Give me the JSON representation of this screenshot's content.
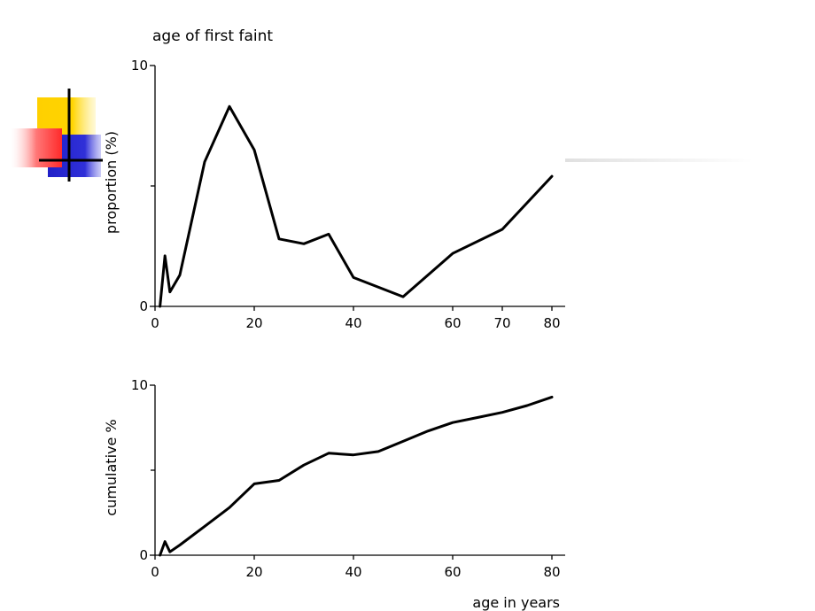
{
  "slide": {
    "accent_colors": {
      "yellow": "#ffd000",
      "red": "#ff3333",
      "blue": "#2222cc",
      "cross": "#000000",
      "rule": "#e4e4e4"
    }
  },
  "chart_data": [
    {
      "type": "line",
      "title": "age of first faint",
      "xlabel": "",
      "ylabel": "proportion (%)",
      "xlim": [
        0,
        82
      ],
      "ylim": [
        0,
        10
      ],
      "x_ticks": [
        0,
        20,
        40,
        60,
        70,
        80
      ],
      "x_tick_labels": [
        "0",
        "20",
        "40",
        "60",
        "70",
        "80"
      ],
      "y_tick_labels": [
        "0",
        "10"
      ],
      "y_minor_ticks": [
        5
      ],
      "grid": false,
      "series": [
        {
          "x": [
            1,
            2,
            3,
            5,
            10,
            15,
            20,
            25,
            30,
            35,
            40,
            50,
            60,
            70,
            80
          ],
          "y": [
            0,
            2.1,
            0.6,
            1.3,
            6.0,
            8.3,
            6.5,
            2.8,
            2.6,
            3.0,
            1.2,
            0.4,
            2.2,
            3.2,
            5.4
          ]
        }
      ]
    },
    {
      "type": "line",
      "title": "",
      "xlabel": "age in years",
      "ylabel": "cumulative %",
      "xlim": [
        0,
        82
      ],
      "ylim": [
        0,
        10
      ],
      "x_ticks": [
        0,
        20,
        40,
        60,
        80
      ],
      "x_tick_labels": [
        "0",
        "20",
        "40",
        "60",
        "80"
      ],
      "y_tick_labels": [
        "0",
        "10"
      ],
      "y_minor_ticks": [
        5
      ],
      "grid": false,
      "series": [
        {
          "x": [
            1,
            2,
            3,
            5,
            10,
            15,
            20,
            25,
            30,
            35,
            40,
            45,
            50,
            55,
            60,
            65,
            70,
            75,
            80
          ],
          "y": [
            0,
            0.8,
            0.2,
            0.6,
            1.7,
            2.8,
            4.2,
            4.4,
            5.3,
            6.0,
            5.9,
            6.1,
            6.7,
            7.3,
            7.8,
            8.1,
            8.4,
            8.8,
            9.3
          ]
        }
      ]
    }
  ]
}
